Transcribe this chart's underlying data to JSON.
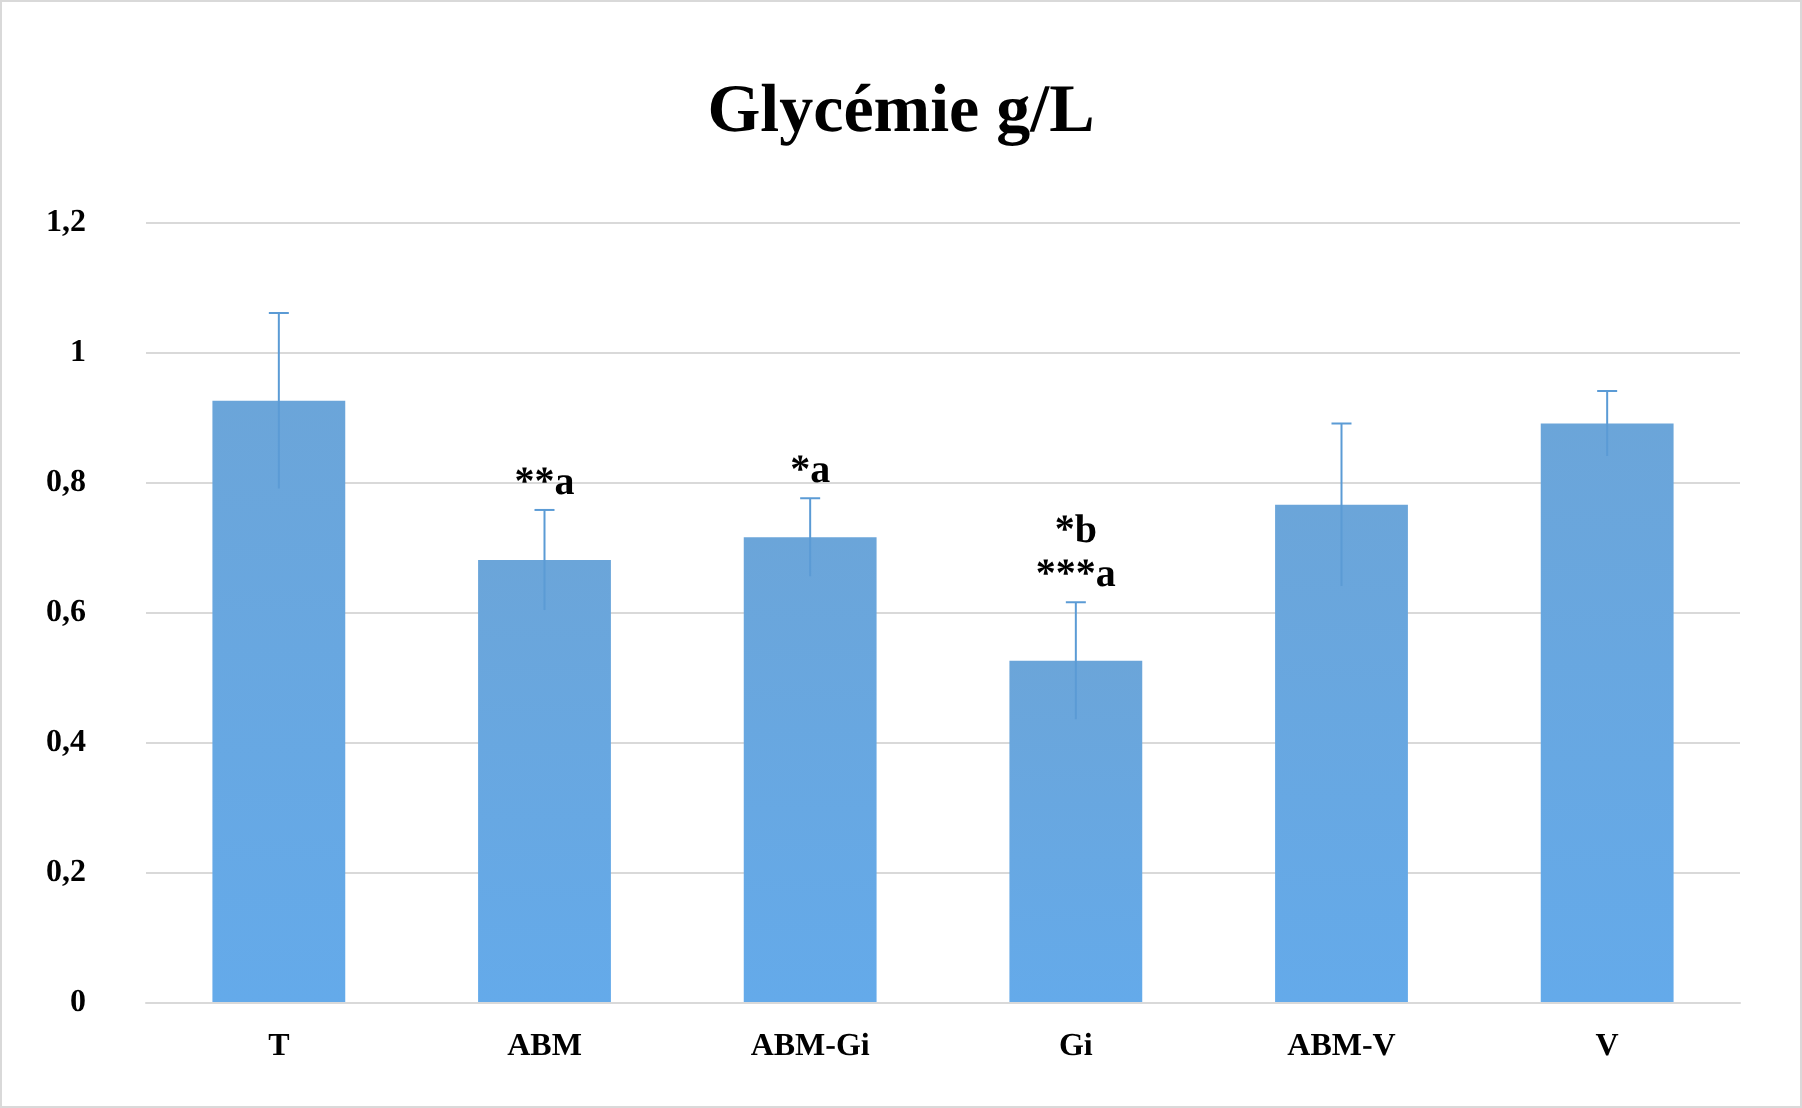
{
  "chart_data": {
    "type": "bar",
    "title": "Glycémie g/L",
    "categories": [
      "T",
      "ABM",
      "ABM-Gi",
      "Gi",
      "ABM-V",
      "V"
    ],
    "values": [
      0.925,
      0.68,
      0.715,
      0.525,
      0.765,
      0.89
    ],
    "errors": [
      0.135,
      0.077,
      0.06,
      0.09,
      0.125,
      0.05
    ],
    "color": "#5b9bd5",
    "ylim": [
      0,
      1.2
    ],
    "yticks": [
      {
        "value": 0,
        "label": "0"
      },
      {
        "value": 0.2,
        "label": "0,2"
      },
      {
        "value": 0.4,
        "label": "0,4"
      },
      {
        "value": 0.6,
        "label": "0,6"
      },
      {
        "value": 0.8,
        "label": "0,8"
      },
      {
        "value": 1,
        "label": "1"
      },
      {
        "value": 1.2,
        "label": "1,2"
      }
    ],
    "grid": "y",
    "annotations": [
      {
        "text": "**a",
        "x": "ABM",
        "y": 0.757
      },
      {
        "text": "*a",
        "x": "ABM-Gi",
        "y": 0.775
      },
      {
        "text": "***a",
        "x": "Gi",
        "y": 0.615
      },
      {
        "text": "*b",
        "x": "Gi",
        "y": 0.615
      }
    ]
  }
}
